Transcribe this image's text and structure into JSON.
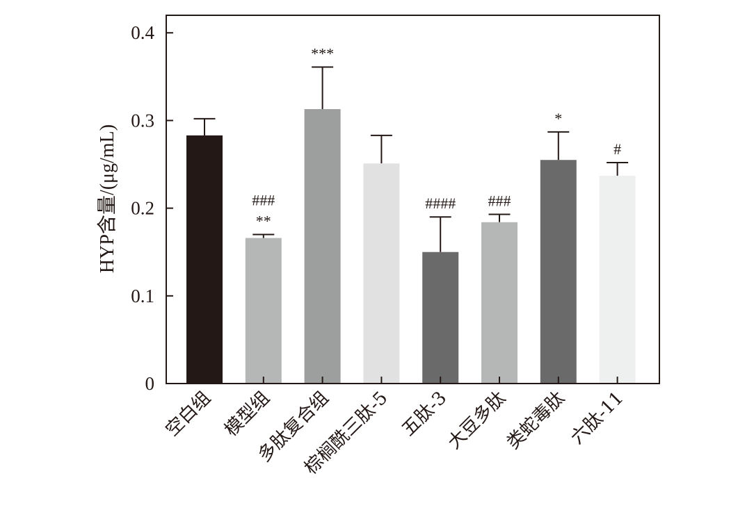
{
  "chart_data": {
    "type": "bar",
    "title": "",
    "xlabel": "",
    "ylabel": "HYP含量/(μg/mL)",
    "ylim": [
      0,
      0.42
    ],
    "yticks": [
      0,
      0.1,
      0.2,
      0.3,
      0.4
    ],
    "ytick_labels": [
      "0",
      "0.1",
      "0.2",
      "0.3",
      "0.4"
    ],
    "grid": false,
    "legend": "none",
    "categories": [
      "空白组",
      "模型组",
      "多肽复合组",
      "棕榈酰三肽-5",
      "五肽-3",
      "大豆多肽",
      "类蛇毒肽",
      "六肽-11"
    ],
    "values": [
      0.283,
      0.166,
      0.313,
      0.251,
      0.15,
      0.184,
      0.255,
      0.237
    ],
    "errors": [
      0.019,
      0.004,
      0.048,
      0.032,
      0.04,
      0.009,
      0.032,
      0.015
    ],
    "colors": [
      "#231815",
      "#b5b6b6",
      "#9d9e9e",
      "#e1e1e1",
      "#6b6a6a",
      "#b5b6b6",
      "#6b6a6a",
      "#eeefef"
    ],
    "annotations": [
      [],
      [
        "###",
        "**"
      ],
      [
        "***"
      ],
      [],
      [
        "####"
      ],
      [
        "###"
      ],
      [
        "*"
      ],
      [
        "#"
      ]
    ]
  }
}
